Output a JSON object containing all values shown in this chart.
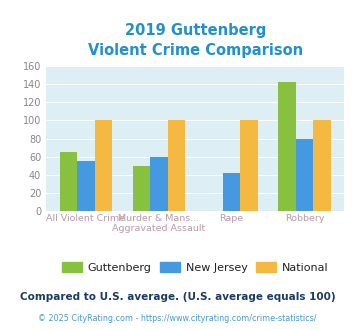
{
  "title_line1": "2019 Guttenberg",
  "title_line2": "Violent Crime Comparison",
  "title_color": "#2090d0",
  "cat_labels_row1": [
    "",
    "Murder & Mans...",
    "",
    ""
  ],
  "cat_labels_row2": [
    "All Violent Crime",
    "Aggravated Assault",
    "Rape",
    "Robbery"
  ],
  "guttenberg": [
    65,
    50,
    0,
    142
  ],
  "new_jersey": [
    55,
    60,
    42,
    80
  ],
  "national": [
    100,
    100,
    100,
    100
  ],
  "color_guttenberg": "#88c040",
  "color_nj": "#4499e0",
  "color_national": "#f5b840",
  "ylim": [
    0,
    160
  ],
  "yticks": [
    0,
    20,
    40,
    60,
    80,
    100,
    120,
    140,
    160
  ],
  "bg_color": "#ddeef5",
  "xtick_color": "#bb99aa",
  "ytick_color": "#888888",
  "footer_text": "Compared to U.S. average. (U.S. average equals 100)",
  "copyright_text": "© 2025 CityRating.com - https://www.cityrating.com/crime-statistics/",
  "footer_color": "#1a3a6a",
  "copyright_color": "#4499e0",
  "legend_text_color": "#222222"
}
